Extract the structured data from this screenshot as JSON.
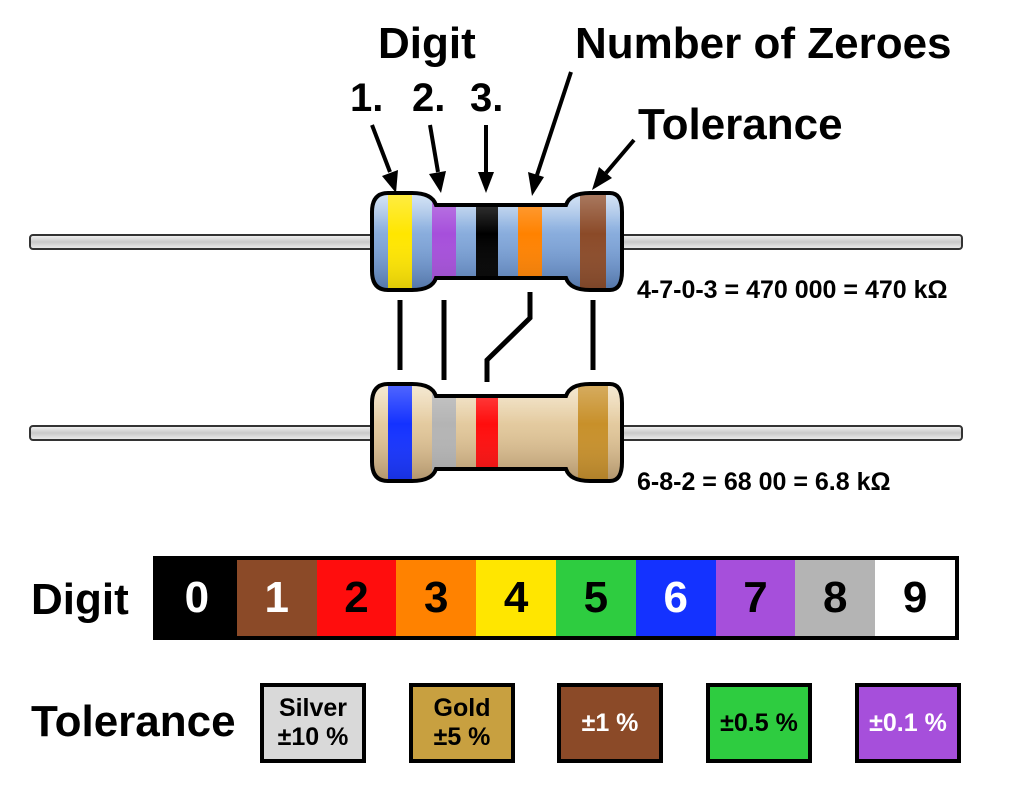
{
  "headings": {
    "digit": "Digit",
    "zeroes": "Number of Zeroes",
    "tolerance": "Tolerance",
    "band_numbers": [
      "1.",
      "2.",
      "3."
    ]
  },
  "examples": [
    {
      "equation": "4-7-0-3 = 470 000 = 470 kΩ",
      "bands": [
        "#ffe600",
        "#a64fdb",
        "#000000",
        "#ff8200",
        "#8b4a28"
      ]
    },
    {
      "equation": "6-8-2 = 68 00 = 6.8 kΩ",
      "bands": [
        "#1432ff",
        "#b4b4b4",
        "#ff0d0d",
        "#c8902a"
      ]
    }
  ],
  "digit_row": {
    "title": "Digit",
    "cells": [
      {
        "value": "0",
        "bg": "#000000",
        "fg": "#ffffff"
      },
      {
        "value": "1",
        "bg": "#8b4a28",
        "fg": "#ffffff"
      },
      {
        "value": "2",
        "bg": "#ff0d0d",
        "fg": "#000000"
      },
      {
        "value": "3",
        "bg": "#ff8200",
        "fg": "#000000"
      },
      {
        "value": "4",
        "bg": "#ffe600",
        "fg": "#000000"
      },
      {
        "value": "5",
        "bg": "#2ecc40",
        "fg": "#000000"
      },
      {
        "value": "6",
        "bg": "#1432ff",
        "fg": "#ffffff"
      },
      {
        "value": "7",
        "bg": "#a64fdb",
        "fg": "#000000"
      },
      {
        "value": "8",
        "bg": "#b4b4b4",
        "fg": "#000000"
      },
      {
        "value": "9",
        "bg": "#ffffff",
        "fg": "#000000"
      }
    ]
  },
  "tolerance_row": {
    "title": "Tolerance",
    "items": [
      {
        "name": "Silver",
        "value": "±10 %",
        "bg": "#d9d9d9",
        "fg": "#000000"
      },
      {
        "name": "Gold",
        "value": "±5 %",
        "bg": "#c8a040",
        "fg": "#000000"
      },
      {
        "name": "",
        "value": "±1 %",
        "bg": "#8b4a28",
        "fg": "#ffffff"
      },
      {
        "name": "",
        "value": "±0.5 %",
        "bg": "#2ecc40",
        "fg": "#000000"
      },
      {
        "name": "",
        "value": "±0.1 %",
        "bg": "#a64fdb",
        "fg": "#ffffff"
      }
    ]
  }
}
